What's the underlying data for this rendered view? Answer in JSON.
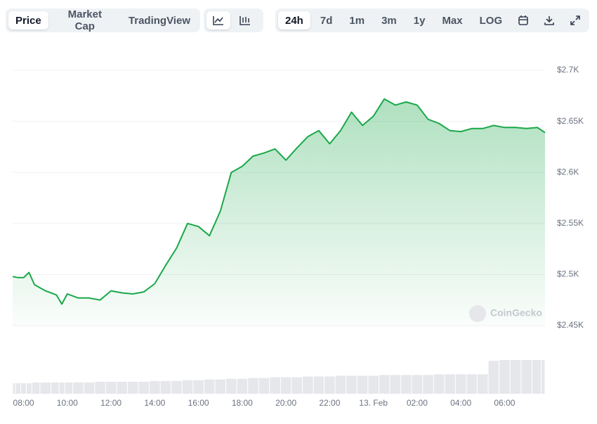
{
  "toolbar": {
    "views": [
      "Price",
      "Market Cap",
      "TradingView"
    ],
    "ranges": [
      "24h",
      "7d",
      "1m",
      "3m",
      "1y",
      "Max",
      "LOG"
    ]
  },
  "chart_data": {
    "type": "area",
    "watermark": "CoinGecko",
    "x": [
      7.5,
      7.75,
      8,
      8.25,
      8.5,
      9,
      9.5,
      9.75,
      10,
      10.5,
      11,
      11.5,
      12,
      12.5,
      13,
      13.5,
      14,
      14.5,
      15,
      15.5,
      16,
      16.5,
      17,
      17.5,
      18,
      18.5,
      19,
      19.5,
      20,
      20.5,
      21,
      21.5,
      22,
      22.5,
      23,
      23.5,
      24,
      24.5,
      25,
      25.5,
      26,
      26.5,
      27,
      27.5,
      28,
      28.5,
      29,
      29.5,
      30,
      30.5,
      31,
      31.5,
      31.85
    ],
    "series": [
      {
        "name": "Price",
        "color": "#1aa849",
        "values": [
          2498,
          2497,
          2497,
          2502,
          2490,
          2484,
          2480,
          2471,
          2481,
          2477,
          2477,
          2475,
          2484,
          2482,
          2481,
          2483,
          2491,
          2509,
          2526,
          2550,
          2547,
          2538,
          2562,
          2600,
          2606,
          2616,
          2619,
          2623,
          2612,
          2624,
          2635,
          2641,
          2628,
          2641,
          2659,
          2646,
          2655,
          2672,
          2666,
          2669,
          2666,
          2652,
          2648,
          2641,
          2640,
          2643,
          2643,
          2646,
          2644,
          2644,
          2643,
          2644,
          2639
        ]
      }
    ],
    "volume": [
      14,
      14,
      14,
      14,
      15,
      15,
      15,
      15,
      15,
      15,
      15,
      16,
      16,
      16,
      16,
      16,
      17,
      17,
      17,
      18,
      18,
      19,
      19,
      20,
      20,
      21,
      21,
      22,
      22,
      22,
      23,
      23,
      23,
      24,
      24,
      24,
      24,
      25,
      25,
      25,
      25,
      25,
      26,
      26,
      26,
      26,
      26,
      44,
      45,
      45,
      45,
      45,
      45
    ],
    "xlim": [
      7.5,
      31.85
    ],
    "xticks": [
      {
        "value": 8,
        "label": "08:00"
      },
      {
        "value": 10,
        "label": "10:00"
      },
      {
        "value": 12,
        "label": "12:00"
      },
      {
        "value": 14,
        "label": "14:00"
      },
      {
        "value": 16,
        "label": "16:00"
      },
      {
        "value": 18,
        "label": "18:00"
      },
      {
        "value": 20,
        "label": "20:00"
      },
      {
        "value": 22,
        "label": "22:00"
      },
      {
        "value": 24,
        "label": "13. Feb"
      },
      {
        "value": 26,
        "label": "02:00"
      },
      {
        "value": 28,
        "label": "04:00"
      },
      {
        "value": 30,
        "label": "06:00"
      }
    ],
    "ylim": [
      2450,
      2700
    ],
    "yticks": [
      {
        "value": 2450,
        "label": "$2.45K"
      },
      {
        "value": 2500,
        "label": "$2.5K"
      },
      {
        "value": 2550,
        "label": "$2.55K"
      },
      {
        "value": 2600,
        "label": "$2.6K"
      },
      {
        "value": 2650,
        "label": "$2.65K"
      },
      {
        "value": 2700,
        "label": "$2.7K"
      }
    ],
    "grid": true
  }
}
